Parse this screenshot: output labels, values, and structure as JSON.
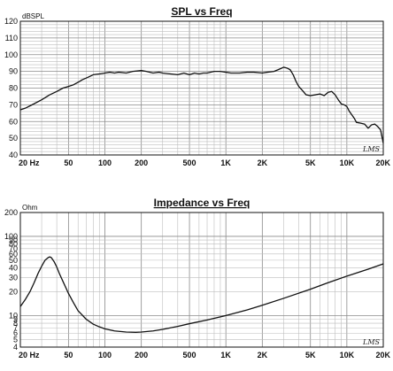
{
  "chart_data": [
    {
      "type": "line",
      "title": "SPL vs Freq",
      "unit_label": "dBSPL",
      "watermark": "LMS",
      "xscale": "log",
      "xlim": [
        20,
        20000
      ],
      "ylim": [
        40,
        120
      ],
      "grid": true,
      "xticks": [
        {
          "v": 20,
          "label": "20  Hz"
        },
        {
          "v": 50,
          "label": "50"
        },
        {
          "v": 100,
          "label": "100"
        },
        {
          "v": 200,
          "label": "200"
        },
        {
          "v": 500,
          "label": "500"
        },
        {
          "v": 1000,
          "label": "1K"
        },
        {
          "v": 2000,
          "label": "2K"
        },
        {
          "v": 5000,
          "label": "5K"
        },
        {
          "v": 10000,
          "label": "10K"
        },
        {
          "v": 20000,
          "label": "20K"
        }
      ],
      "yticks": [
        {
          "v": 120,
          "label": "120"
        },
        {
          "v": 110,
          "label": "110"
        },
        {
          "v": 100,
          "label": "100"
        },
        {
          "v": 90,
          "label": "90"
        },
        {
          "v": 80,
          "label": "80"
        },
        {
          "v": 70,
          "label": "70"
        },
        {
          "v": 60,
          "label": "60"
        },
        {
          "v": 50,
          "label": "50"
        },
        {
          "v": 40,
          "label": "40"
        }
      ],
      "series": [
        {
          "x": [
            20,
            22,
            25,
            30,
            35,
            40,
            45,
            50,
            55,
            60,
            65,
            70,
            75,
            80,
            90,
            100,
            110,
            120,
            130,
            150,
            170,
            200,
            220,
            250,
            280,
            300,
            350,
            400,
            450,
            500,
            550,
            600,
            650,
            700,
            800,
            900,
            1000,
            1100,
            1200,
            1300,
            1500,
            1700,
            2000,
            2200,
            2500,
            2700,
            2900,
            3000,
            3200,
            3400,
            3600,
            3800,
            4000,
            4300,
            4600,
            5000,
            5500,
            6000,
            6500,
            7000,
            7500,
            8000,
            8500,
            9000,
            9500,
            10000,
            10500,
            11000,
            11500,
            12000,
            13000,
            14000,
            15000,
            16000,
            17000,
            18000,
            19000,
            20000
          ],
          "y": [
            67,
            68,
            70,
            73,
            76,
            78,
            80,
            81,
            82,
            83.5,
            85,
            86,
            87,
            88,
            88.5,
            89,
            89.5,
            89,
            89.5,
            89,
            90,
            90.5,
            90,
            89,
            89.5,
            89,
            88.5,
            88,
            89,
            88,
            89,
            88.5,
            89,
            89,
            90,
            90,
            89.5,
            89,
            89,
            89,
            89.5,
            89.5,
            89,
            89.5,
            90,
            91,
            92,
            92.5,
            92,
            91,
            88,
            84,
            81,
            78.5,
            76,
            75.5,
            76,
            76.5,
            75.5,
            77.5,
            78,
            76,
            73,
            70.5,
            70,
            69,
            66,
            64,
            62,
            59.5,
            59,
            58.5,
            56,
            58,
            58.5,
            57,
            55,
            47
          ]
        }
      ]
    },
    {
      "type": "line",
      "title": "Impedance vs Freq",
      "unit_label": "Ohm",
      "watermark": "LMS",
      "xscale": "log",
      "yscale": "log",
      "xlim": [
        20,
        20000
      ],
      "ylim": [
        4,
        200
      ],
      "grid": true,
      "xticks": [
        {
          "v": 20,
          "label": "20  Hz"
        },
        {
          "v": 50,
          "label": "50"
        },
        {
          "v": 100,
          "label": "100"
        },
        {
          "v": 200,
          "label": "200"
        },
        {
          "v": 500,
          "label": "500"
        },
        {
          "v": 1000,
          "label": "1K"
        },
        {
          "v": 2000,
          "label": "2K"
        },
        {
          "v": 5000,
          "label": "5K"
        },
        {
          "v": 10000,
          "label": "10K"
        },
        {
          "v": 20000,
          "label": "20K"
        }
      ],
      "yticks": [
        {
          "v": 200,
          "label": "200"
        },
        {
          "v": 100,
          "label": "100"
        },
        {
          "v": 90,
          "label": "90"
        },
        {
          "v": 80,
          "label": "80"
        },
        {
          "v": 70,
          "label": "70"
        },
        {
          "v": 60,
          "label": "60"
        },
        {
          "v": 50,
          "label": "50"
        },
        {
          "v": 40,
          "label": "40"
        },
        {
          "v": 30,
          "label": "30"
        },
        {
          "v": 20,
          "label": "20"
        },
        {
          "v": 10,
          "label": "10"
        },
        {
          "v": 9,
          "label": "9"
        },
        {
          "v": 8,
          "label": "8"
        },
        {
          "v": 7,
          "label": "7"
        },
        {
          "v": 6,
          "label": "6"
        },
        {
          "v": 5,
          "label": "5"
        },
        {
          "v": 4,
          "label": "4"
        }
      ],
      "series": [
        {
          "x": [
            20,
            22,
            24,
            26,
            28,
            30,
            32,
            34,
            35,
            36,
            37,
            38,
            40,
            42,
            45,
            50,
            55,
            60,
            70,
            80,
            90,
            100,
            120,
            150,
            180,
            200,
            250,
            300,
            400,
            500,
            700,
            1000,
            1500,
            2000,
            3000,
            5000,
            7000,
            10000,
            15000,
            20000
          ],
          "y": [
            13,
            16,
            20,
            26,
            34,
            42,
            50,
            54,
            55,
            54,
            51,
            48,
            41,
            34,
            27,
            19,
            14.5,
            11.5,
            9,
            7.8,
            7.2,
            6.8,
            6.4,
            6.2,
            6.15,
            6.2,
            6.4,
            6.7,
            7.3,
            7.9,
            8.8,
            10,
            11.8,
            13.5,
            16.5,
            21.5,
            26,
            31.5,
            38.5,
            45
          ]
        }
      ]
    }
  ]
}
